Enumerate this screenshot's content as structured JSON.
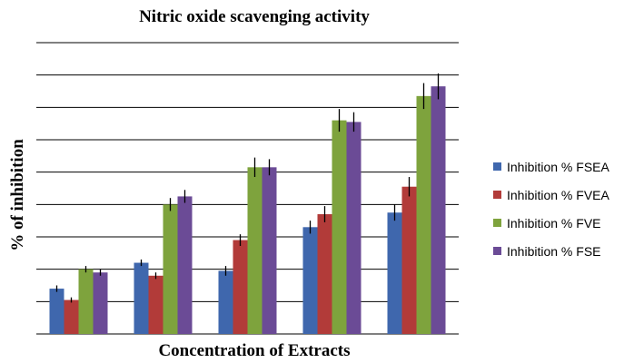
{
  "chart_data": {
    "type": "bar",
    "title": "Nitric  oxide scavenging  activity",
    "xlabel": "Concentration of Extracts",
    "ylabel": "% of inhibition",
    "categories": [
      "",
      "",
      "",
      "",
      ""
    ],
    "ylim": [
      0,
      90
    ],
    "gridlines": 9,
    "grid": true,
    "legend_position": "right",
    "error_bars": true,
    "series": [
      {
        "name": "Inhibition % FSEA",
        "color": "#3f67ad",
        "values": [
          14,
          22,
          19.5,
          33,
          37.5
        ],
        "errors": [
          1,
          1,
          1.5,
          2,
          2.5
        ]
      },
      {
        "name": "Inhibition % FVEA",
        "color": "#b23b39",
        "values": [
          10.5,
          18,
          29,
          37,
          45.5
        ],
        "errors": [
          0.8,
          1,
          1.8,
          2.5,
          3
        ]
      },
      {
        "name": "Inhibition % FVE",
        "color": "#7ea33d",
        "values": [
          20,
          40,
          51.5,
          66,
          73.5
        ],
        "errors": [
          1,
          2,
          3,
          3.5,
          4
        ]
      },
      {
        "name": "Inhibition % FSE",
        "color": "#6b4b96",
        "values": [
          19,
          42.5,
          51.5,
          65.5,
          76.5
        ],
        "errors": [
          1,
          2,
          2.5,
          3,
          4
        ]
      }
    ]
  }
}
